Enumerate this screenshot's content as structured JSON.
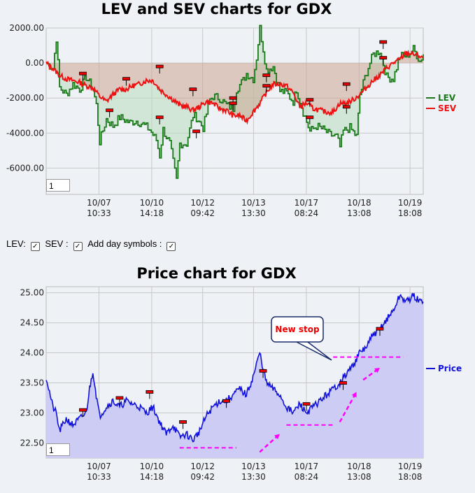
{
  "charts_title_top": "LEV and SEV charts for GDX",
  "charts_title_bottom": "Price chart for GDX",
  "controls": {
    "lev_label": "LEV:",
    "sev_label": "SEV :",
    "day_symbols_label": "Add day symbols :",
    "check": "✓"
  },
  "zoom_top": "1",
  "zoom_bottom": "1",
  "annotation": "New stop",
  "colors": {
    "lev": "#1a7a1a",
    "sev": "#ee1111",
    "price": "#1111dd",
    "price_fill": "#ccccf4"
  },
  "chart_data": [
    {
      "type": "line",
      "title": "LEV and SEV charts for GDX",
      "x_ticks": [
        [
          "10/07",
          "10:33"
        ],
        [
          "10/10",
          "14:18"
        ],
        [
          "10/12",
          "09:42"
        ],
        [
          "10/13",
          "13:30"
        ],
        [
          "10/17",
          "08:24"
        ],
        [
          "10/18",
          "13:08"
        ],
        [
          "10/19",
          "18:08"
        ]
      ],
      "y_ticks": [
        "2000.00",
        "0.00",
        "-2000.00",
        "-4000.00",
        "-6000.00"
      ],
      "ylim": [
        -7500,
        2000
      ],
      "legend": "right",
      "series": [
        {
          "name": "LEV",
          "points": [
            [
              0,
              0
            ],
            [
              2,
              -300
            ],
            [
              3,
              1400
            ],
            [
              4,
              -1400
            ],
            [
              6,
              -1800
            ],
            [
              8,
              -1200
            ],
            [
              10,
              -1500
            ],
            [
              12,
              -800
            ],
            [
              14,
              -1500
            ],
            [
              15,
              -2400
            ],
            [
              16,
              -4500
            ],
            [
              18,
              -3200
            ],
            [
              20,
              -3600
            ],
            [
              22,
              -3100
            ],
            [
              25,
              -3400
            ],
            [
              27,
              -3300
            ],
            [
              29,
              -3500
            ],
            [
              31,
              -3800
            ],
            [
              33,
              -4400
            ],
            [
              34,
              -5300
            ],
            [
              35,
              -3800
            ],
            [
              37,
              -4600
            ],
            [
              39,
              -6700
            ],
            [
              40,
              -4600
            ],
            [
              42,
              -4600
            ],
            [
              44,
              -3000
            ],
            [
              45,
              -3100
            ],
            [
              47,
              -3700
            ],
            [
              49,
              -2100
            ],
            [
              50,
              -1900
            ],
            [
              52,
              -2000
            ],
            [
              54,
              -2400
            ],
            [
              56,
              -2600
            ],
            [
              57,
              -1500
            ],
            [
              59,
              -1000
            ],
            [
              60,
              -600
            ],
            [
              62,
              -900
            ],
            [
              63,
              300
            ],
            [
              64,
              2000
            ],
            [
              66,
              -400
            ],
            [
              68,
              -200
            ],
            [
              70,
              -1600
            ],
            [
              72,
              -1700
            ],
            [
              74,
              -2200
            ],
            [
              75,
              -1500
            ],
            [
              77,
              -2800
            ],
            [
              79,
              -3900
            ],
            [
              81,
              -3600
            ],
            [
              83,
              -3800
            ],
            [
              85,
              -4100
            ],
            [
              87,
              -4200
            ],
            [
              88,
              -4800
            ],
            [
              89,
              -3900
            ],
            [
              91,
              -3700
            ],
            [
              93,
              -4200
            ],
            [
              94,
              -1800
            ],
            [
              96,
              -500
            ],
            [
              98,
              500
            ],
            [
              100,
              700
            ],
            [
              102,
              -800
            ],
            [
              104,
              -900
            ],
            [
              106,
              400
            ],
            [
              108,
              400
            ],
            [
              110,
              800
            ],
            [
              112,
              100
            ],
            [
              113,
              500
            ]
          ]
        },
        {
          "name": "SEV",
          "points": [
            [
              0,
              0
            ],
            [
              2,
              -300
            ],
            [
              4,
              -700
            ],
            [
              6,
              -900
            ],
            [
              8,
              -1000
            ],
            [
              10,
              -1100
            ],
            [
              12,
              -1300
            ],
            [
              14,
              -1400
            ],
            [
              16,
              -1900
            ],
            [
              18,
              -2200
            ],
            [
              20,
              -1800
            ],
            [
              22,
              -1500
            ],
            [
              24,
              -1500
            ],
            [
              26,
              -1300
            ],
            [
              28,
              -1200
            ],
            [
              30,
              -1000
            ],
            [
              32,
              -1000
            ],
            [
              34,
              -1500
            ],
            [
              36,
              -1800
            ],
            [
              38,
              -2100
            ],
            [
              40,
              -2400
            ],
            [
              42,
              -2500
            ],
            [
              44,
              -2700
            ],
            [
              46,
              -2500
            ],
            [
              48,
              -2200
            ],
            [
              50,
              -2300
            ],
            [
              52,
              -2600
            ],
            [
              54,
              -2700
            ],
            [
              56,
              -3000
            ],
            [
              58,
              -3000
            ],
            [
              60,
              -3300
            ],
            [
              62,
              -2800
            ],
            [
              64,
              -2300
            ],
            [
              66,
              -1700
            ],
            [
              68,
              -1200
            ],
            [
              70,
              -1200
            ],
            [
              72,
              -1300
            ],
            [
              74,
              -1700
            ],
            [
              76,
              -2500
            ],
            [
              78,
              -2300
            ],
            [
              80,
              -2600
            ],
            [
              82,
              -2700
            ],
            [
              84,
              -2800
            ],
            [
              86,
              -2800
            ],
            [
              88,
              -2300
            ],
            [
              90,
              -2300
            ],
            [
              92,
              -2100
            ],
            [
              94,
              -1800
            ],
            [
              96,
              -1400
            ],
            [
              98,
              -1000
            ],
            [
              100,
              -700
            ],
            [
              102,
              -300
            ],
            [
              104,
              0
            ],
            [
              106,
              200
            ],
            [
              108,
              600
            ],
            [
              110,
              500
            ],
            [
              112,
              400
            ],
            [
              113,
              300
            ]
          ]
        }
      ]
    },
    {
      "type": "area",
      "title": "Price chart for GDX",
      "x_ticks": [
        [
          "10/07",
          "10:33"
        ],
        [
          "10/10",
          "14:18"
        ],
        [
          "10/12",
          "09:42"
        ],
        [
          "10/13",
          "13:30"
        ],
        [
          "10/17",
          "08:24"
        ],
        [
          "10/18",
          "13:08"
        ],
        [
          "10/19",
          "18:08"
        ]
      ],
      "y_ticks": [
        "25.00",
        "24.50",
        "24.00",
        "23.50",
        "23.00",
        "22.50"
      ],
      "ylim": [
        22.25,
        25.1
      ],
      "legend": "right",
      "series": [
        {
          "name": "Price",
          "points": [
            [
              0,
              23.6
            ],
            [
              2,
              23.1
            ],
            [
              3,
              23.0
            ],
            [
              4,
              22.7
            ],
            [
              6,
              22.9
            ],
            [
              8,
              22.8
            ],
            [
              10,
              22.9
            ],
            [
              12,
              23.0
            ],
            [
              13,
              23.4
            ],
            [
              14,
              23.7
            ],
            [
              15,
              23.3
            ],
            [
              16,
              22.95
            ],
            [
              18,
              23.1
            ],
            [
              20,
              23.2
            ],
            [
              22,
              23.1
            ],
            [
              24,
              23.2
            ],
            [
              26,
              23.15
            ],
            [
              28,
              23.1
            ],
            [
              30,
              23.0
            ],
            [
              32,
              23.1
            ],
            [
              34,
              22.85
            ],
            [
              36,
              22.65
            ],
            [
              38,
              22.8
            ],
            [
              40,
              22.6
            ],
            [
              42,
              22.65
            ],
            [
              44,
              22.55
            ],
            [
              46,
              22.7
            ],
            [
              48,
              22.95
            ],
            [
              50,
              23.1
            ],
            [
              52,
              23.2
            ],
            [
              54,
              23.2
            ],
            [
              56,
              23.3
            ],
            [
              58,
              23.4
            ],
            [
              60,
              23.3
            ],
            [
              62,
              23.6
            ],
            [
              64,
              24.0
            ],
            [
              66,
              23.5
            ],
            [
              68,
              23.4
            ],
            [
              70,
              23.3
            ],
            [
              72,
              23.1
            ],
            [
              74,
              23.0
            ],
            [
              76,
              23.15
            ],
            [
              78,
              23.0
            ],
            [
              80,
              23.1
            ],
            [
              82,
              23.2
            ],
            [
              84,
              23.3
            ],
            [
              86,
              23.4
            ],
            [
              88,
              23.5
            ],
            [
              90,
              23.65
            ],
            [
              92,
              23.8
            ],
            [
              94,
              24.0
            ],
            [
              96,
              24.1
            ],
            [
              98,
              24.3
            ],
            [
              100,
              24.4
            ],
            [
              102,
              24.55
            ],
            [
              104,
              24.7
            ],
            [
              106,
              24.95
            ],
            [
              108,
              24.85
            ],
            [
              110,
              24.95
            ],
            [
              112,
              24.85
            ],
            [
              113,
              24.85
            ]
          ]
        }
      ]
    }
  ]
}
